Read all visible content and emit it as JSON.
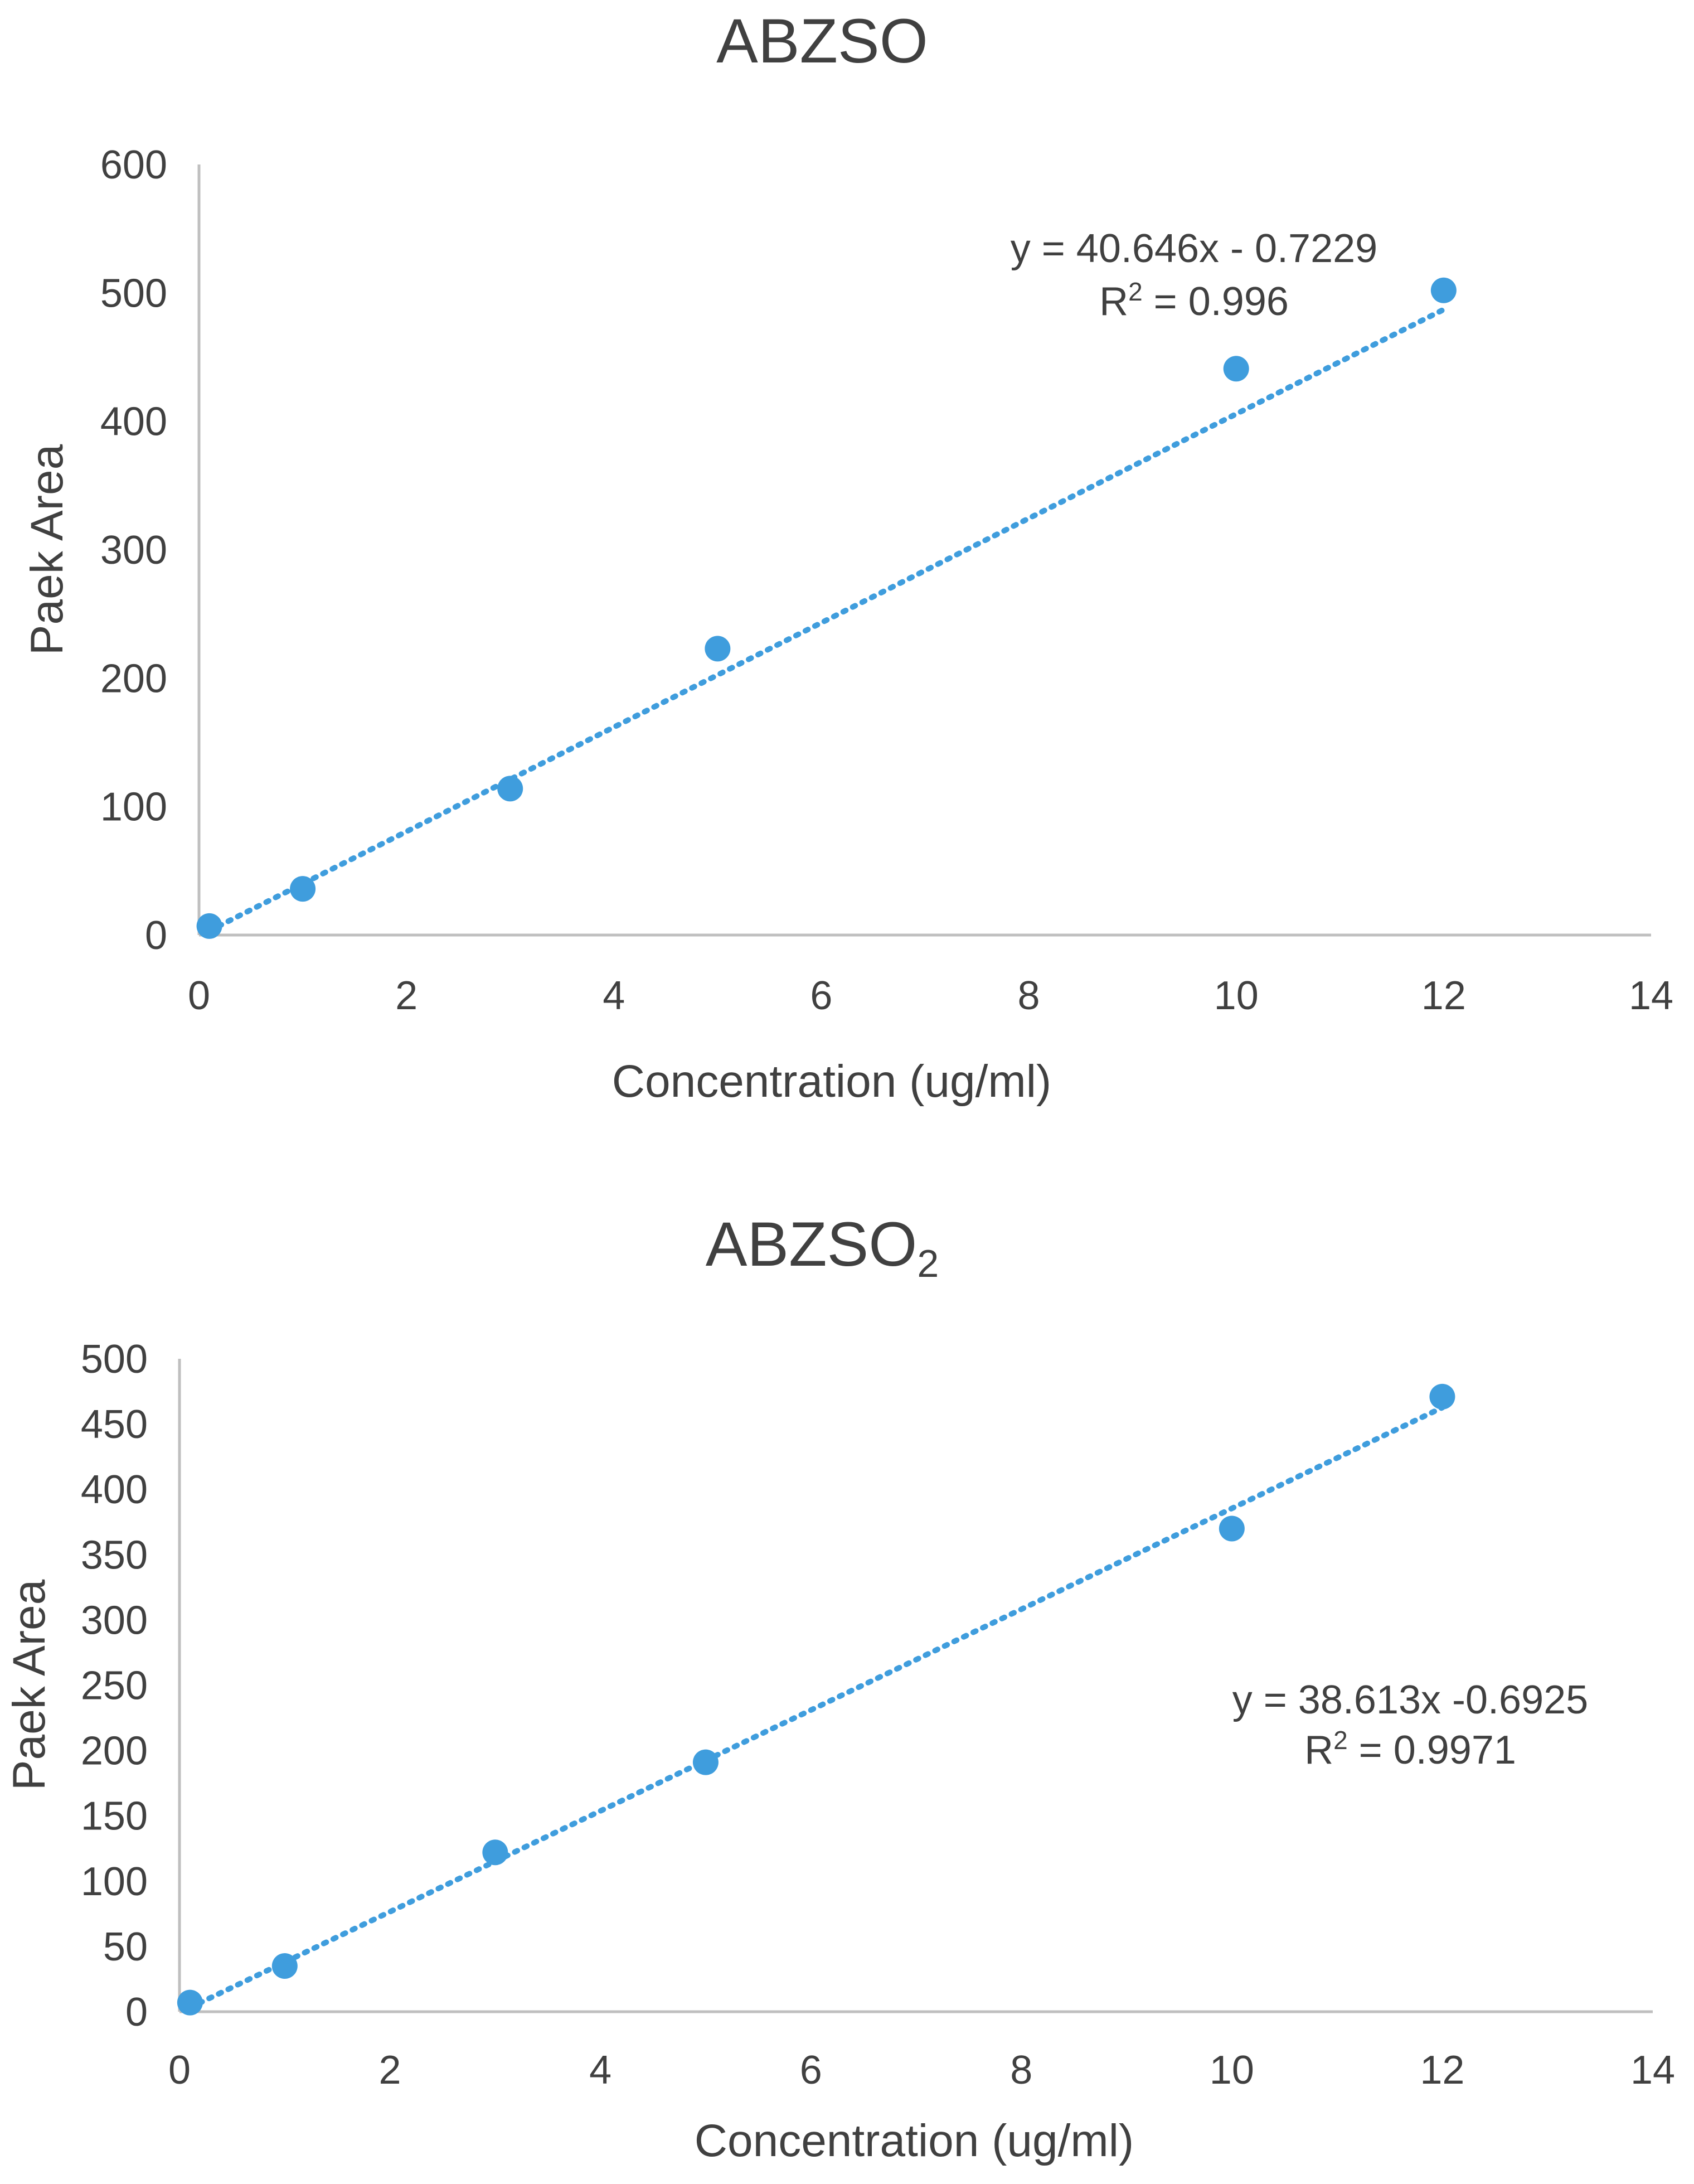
{
  "colors": {
    "series": "#3f9ddd",
    "axis": "#bfbfbf",
    "text": "#404040"
  },
  "chart_data": [
    {
      "type": "scatter",
      "title": "ABZSO",
      "title_subscript": "",
      "xlabel": "Concentration (ug/ml)",
      "ylabel": "Paek Area",
      "xlim": [
        0,
        14
      ],
      "ylim": [
        0,
        600
      ],
      "xticks": [
        "0",
        "2",
        "4",
        "6",
        "8",
        "10",
        "12",
        "14"
      ],
      "yticks": [
        "0",
        "100",
        "200",
        "300",
        "400",
        "500",
        "600"
      ],
      "grid": false,
      "series": [
        {
          "name": "ABZSO",
          "x": [
            0.1,
            1,
            3,
            5,
            10,
            12
          ],
          "y": [
            7,
            36,
            114,
            223,
            441,
            502
          ]
        }
      ],
      "trendline": {
        "type": "linear",
        "slope": 40.646,
        "intercept": -0.7229,
        "x_range": [
          0.1,
          12
        ],
        "style": "dotted"
      },
      "equation_label": "y = 40.646x - 0.7229",
      "r2_prefix": "R",
      "r2_sup": "2",
      "r2_value": " = 0.996",
      "annotation_position": "top-right"
    },
    {
      "type": "scatter",
      "title": "ABZSO",
      "title_subscript": "2",
      "xlabel": "Concentration (ug/ml)",
      "ylabel": "Paek Area",
      "xlim": [
        0,
        14
      ],
      "ylim": [
        0,
        500
      ],
      "xticks": [
        "0",
        "2",
        "4",
        "6",
        "8",
        "10",
        "12",
        "14"
      ],
      "yticks": [
        "0",
        "50",
        "100",
        "150",
        "200",
        "250",
        "300",
        "350",
        "400",
        "450",
        "500"
      ],
      "grid": false,
      "series": [
        {
          "name": "ABZSO2",
          "x": [
            0.1,
            1,
            3,
            5,
            10,
            12
          ],
          "y": [
            7,
            35,
            122,
            191,
            370,
            471
          ]
        }
      ],
      "trendline": {
        "type": "linear",
        "slope": 38.613,
        "intercept": -0.6925,
        "x_range": [
          0.1,
          12
        ],
        "style": "dotted"
      },
      "equation_label": "y = 38.613x -0.6925",
      "r2_prefix": "R",
      "r2_sup": "2",
      "r2_value": " = 0.9971",
      "annotation_position": "right"
    }
  ]
}
